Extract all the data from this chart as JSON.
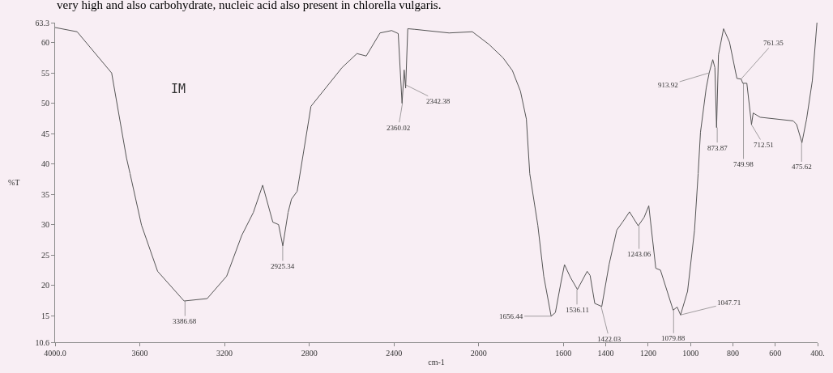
{
  "chart_data": {
    "type": "line",
    "xlabel": "cm-1",
    "ylabel": "%T",
    "xlim": [
      4000,
      400
    ],
    "ylim": [
      10.6,
      63.3
    ],
    "xticks": [
      {
        "value": 4000,
        "label": "4000.0"
      },
      3600,
      3200,
      2800,
      2400,
      2000,
      1600,
      1400,
      1200,
      1000,
      800,
      600,
      {
        "value": 400,
        "label": "400."
      }
    ],
    "yticks": [
      10.6,
      15,
      20,
      25,
      30,
      35,
      40,
      45,
      50,
      55,
      60,
      63.3
    ],
    "grid": false,
    "marker": "none",
    "line_style": "solid",
    "series": [
      {
        "color": "#555555",
        "x": [
          4000,
          3896,
          3733,
          3663,
          3646,
          3592,
          3516,
          3391,
          3282,
          3190,
          3119,
          3064,
          3020,
          2972,
          2945,
          2925,
          2900,
          2884,
          2857,
          2792,
          2645,
          2575,
          2531,
          2466,
          2411,
          2380,
          2362,
          2352,
          2345,
          2335,
          2302,
          2140,
          2030,
          1951,
          1885,
          1841,
          1803,
          1775,
          1759,
          1721,
          1693,
          1658,
          1638,
          1611,
          1595,
          1567,
          1534,
          1488,
          1474,
          1452,
          1419,
          1384,
          1348,
          1321,
          1288,
          1247,
          1219,
          1197,
          1164,
          1142,
          1082,
          1063,
          1047,
          1014,
          981,
          964,
          953,
          926,
          912,
          895,
          885,
          877,
          868,
          844,
          816,
          781,
          761,
          753,
          734,
          712,
          704,
          671,
          515,
          499,
          474,
          452,
          425,
          403
        ],
        "values": [
          62.5,
          61.8,
          55,
          41,
          38.4,
          29.9,
          22.3,
          17.4,
          17.8,
          21.5,
          28.2,
          32,
          36.5,
          30.4,
          30,
          26.5,
          32,
          34.2,
          35.5,
          49.5,
          55.9,
          58.2,
          57.8,
          61.6,
          62,
          61.5,
          50,
          55.5,
          52.5,
          62.3,
          62.2,
          61.6,
          61.8,
          59.7,
          57.5,
          55.4,
          52,
          47.4,
          38.4,
          29.9,
          21.5,
          14.9,
          15.5,
          20.6,
          23.4,
          21.3,
          19.3,
          22.3,
          21.6,
          17,
          16.5,
          23.5,
          29.1,
          30.4,
          32.1,
          29.8,
          31.2,
          33.1,
          22.8,
          22.5,
          15.9,
          16.4,
          15.1,
          19,
          29.1,
          38.4,
          45.2,
          52.5,
          55,
          57.2,
          55.9,
          46,
          58,
          62.3,
          60.1,
          54.1,
          54,
          53.3,
          53.3,
          46.5,
          48.4,
          47.7,
          47.1,
          46.5,
          43.5,
          47.4,
          53.7,
          63.3
        ]
      }
    ],
    "annotations": [
      "very high and also carbohydrate, nucleic acid also present in chlorella vulgaris.",
      "IM",
      {
        "text": "3386.68",
        "x": 3386.68,
        "y": 17.4
      },
      {
        "text": "2925.34",
        "x": 2925.34,
        "y": 26.5
      },
      {
        "text": "2360.02",
        "x": 2360.02,
        "y": 50
      },
      {
        "text": "2342.38",
        "x": 2342.38,
        "y": 53
      },
      {
        "text": "1656.44",
        "x": 1656.44,
        "y": 14.9
      },
      {
        "text": "1536.11",
        "x": 1536.11,
        "y": 19.3
      },
      {
        "text": "1422.03",
        "x": 1422.03,
        "y": 16.5
      },
      {
        "text": "1243.06",
        "x": 1243.06,
        "y": 29.8
      },
      {
        "text": "1079.88",
        "x": 1079.88,
        "y": 15.9
      },
      {
        "text": "1047.71",
        "x": 1047.71,
        "y": 15.1
      },
      {
        "text": "913.92",
        "x": 913.92,
        "y": 55
      },
      {
        "text": "873.87",
        "x": 873.87,
        "y": 46
      },
      {
        "text": "761.35",
        "x": 761.35,
        "y": 54
      },
      {
        "text": "749.98",
        "x": 749.98,
        "y": 53.3
      },
      {
        "text": "712.51",
        "x": 712.51,
        "y": 46.5
      },
      {
        "text": "475.62",
        "x": 475.62,
        "y": 43.5
      }
    ]
  }
}
